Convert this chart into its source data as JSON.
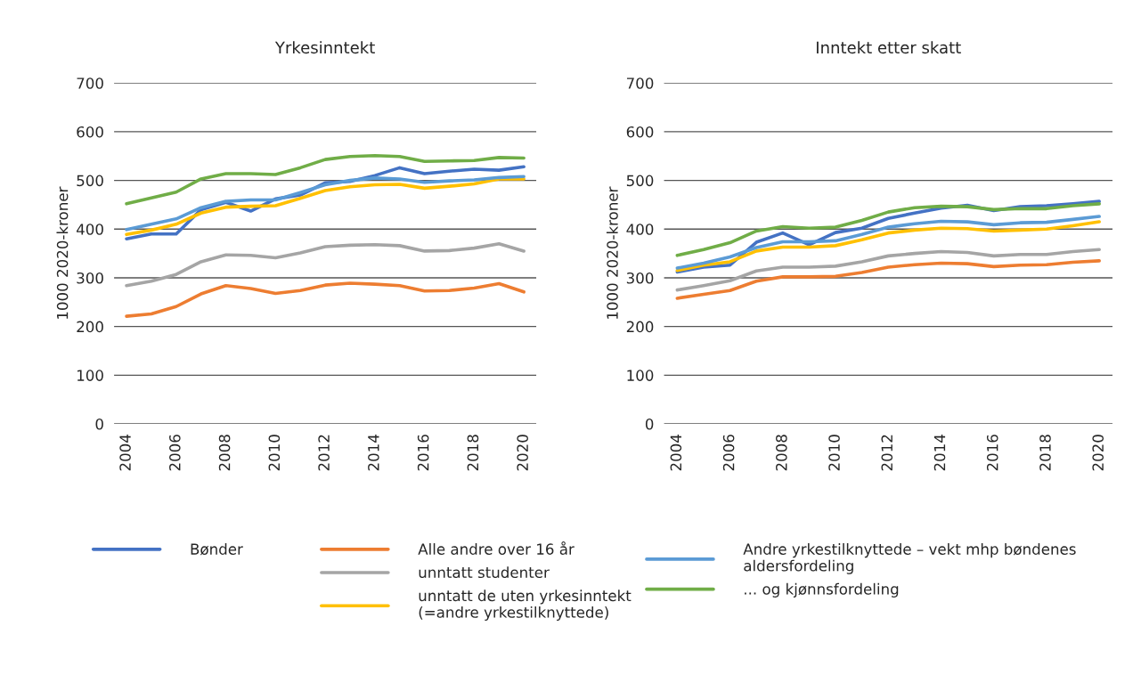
{
  "chart_data": [
    {
      "type": "line",
      "title": "Yrkesinntekt",
      "ylabel": "1000 2020-kroner",
      "x": [
        2004,
        2005,
        2006,
        2007,
        2008,
        2009,
        2010,
        2011,
        2012,
        2013,
        2014,
        2015,
        2016,
        2017,
        2018,
        2019,
        2020
      ],
      "xlim": [
        2003.5,
        2020.5
      ],
      "xticks": [
        2004,
        2006,
        2008,
        2010,
        2012,
        2014,
        2016,
        2018,
        2020
      ],
      "ylim": [
        0,
        700
      ],
      "yticks": [
        0,
        100,
        200,
        300,
        400,
        500,
        600,
        700
      ],
      "grid": "y",
      "legend": "bottom",
      "series": [
        {
          "name": "Bønder",
          "color": "#4472c4",
          "values": [
            380,
            390,
            390,
            440,
            455,
            437,
            462,
            470,
            495,
            498,
            510,
            526,
            514,
            519,
            523,
            521,
            528
          ]
        },
        {
          "name": "Alle andre over 16 år",
          "color": "#ed7d31",
          "values": [
            221,
            226,
            241,
            267,
            284,
            278,
            268,
            274,
            285,
            289,
            287,
            284,
            273,
            274,
            279,
            288,
            271
          ]
        },
        {
          "name": "unntatt studenter",
          "color": "#a5a5a5",
          "values": [
            284,
            293,
            307,
            333,
            347,
            346,
            341,
            351,
            364,
            367,
            368,
            366,
            355,
            356,
            361,
            370,
            355
          ]
        },
        {
          "name": "unntatt de uten yrkesinntekt\n(=andre yrkestilknyttede)",
          "color": "#ffc000",
          "values": [
            389,
            398,
            410,
            433,
            445,
            447,
            448,
            463,
            479,
            487,
            491,
            492,
            484,
            488,
            493,
            503,
            503
          ]
        },
        {
          "name": "Andre yrkestilknyttede – vekt mhp bøndenes\naldersfordeling",
          "color": "#5b9bd5",
          "values": [
            399,
            410,
            421,
            444,
            457,
            460,
            460,
            475,
            491,
            500,
            505,
            503,
            496,
            499,
            501,
            506,
            508
          ]
        },
        {
          "name": "... og kjønnsfordeling",
          "color": "#70ad47",
          "values": [
            452,
            464,
            476,
            503,
            514,
            514,
            512,
            526,
            543,
            549,
            551,
            549,
            539,
            540,
            541,
            547,
            546
          ]
        }
      ]
    },
    {
      "type": "line",
      "title": "Inntekt etter skatt",
      "ylabel": "1000 2020-kroner",
      "x": [
        2004,
        2005,
        2006,
        2007,
        2008,
        2009,
        2010,
        2011,
        2012,
        2013,
        2014,
        2015,
        2016,
        2017,
        2018,
        2019,
        2020
      ],
      "xlim": [
        2003.5,
        2020.5
      ],
      "xticks": [
        2004,
        2006,
        2008,
        2010,
        2012,
        2014,
        2016,
        2018,
        2020
      ],
      "ylim": [
        0,
        700
      ],
      "yticks": [
        0,
        100,
        200,
        300,
        400,
        500,
        600,
        700
      ],
      "grid": "y",
      "series": [
        {
          "color": "#4472c4",
          "values": [
            312,
            322,
            326,
            373,
            392,
            368,
            393,
            402,
            422,
            433,
            443,
            449,
            438,
            446,
            448,
            452,
            457
          ]
        },
        {
          "color": "#ed7d31",
          "values": [
            258,
            266,
            274,
            293,
            302,
            302,
            303,
            311,
            322,
            327,
            330,
            329,
            323,
            326,
            327,
            332,
            335
          ]
        },
        {
          "color": "#a5a5a5",
          "values": [
            275,
            284,
            294,
            314,
            322,
            322,
            324,
            333,
            345,
            350,
            354,
            352,
            345,
            348,
            348,
            354,
            358
          ]
        },
        {
          "color": "#ffc000",
          "values": [
            315,
            326,
            333,
            355,
            363,
            363,
            366,
            378,
            392,
            398,
            402,
            401,
            396,
            398,
            400,
            407,
            415
          ]
        },
        {
          "color": "#5b9bd5",
          "values": [
            320,
            330,
            343,
            362,
            374,
            374,
            376,
            389,
            404,
            411,
            416,
            415,
            409,
            413,
            414,
            420,
            426
          ]
        },
        {
          "color": "#70ad47",
          "values": [
            346,
            358,
            372,
            396,
            405,
            402,
            404,
            418,
            435,
            444,
            447,
            446,
            440,
            442,
            442,
            448,
            452
          ]
        }
      ]
    }
  ]
}
